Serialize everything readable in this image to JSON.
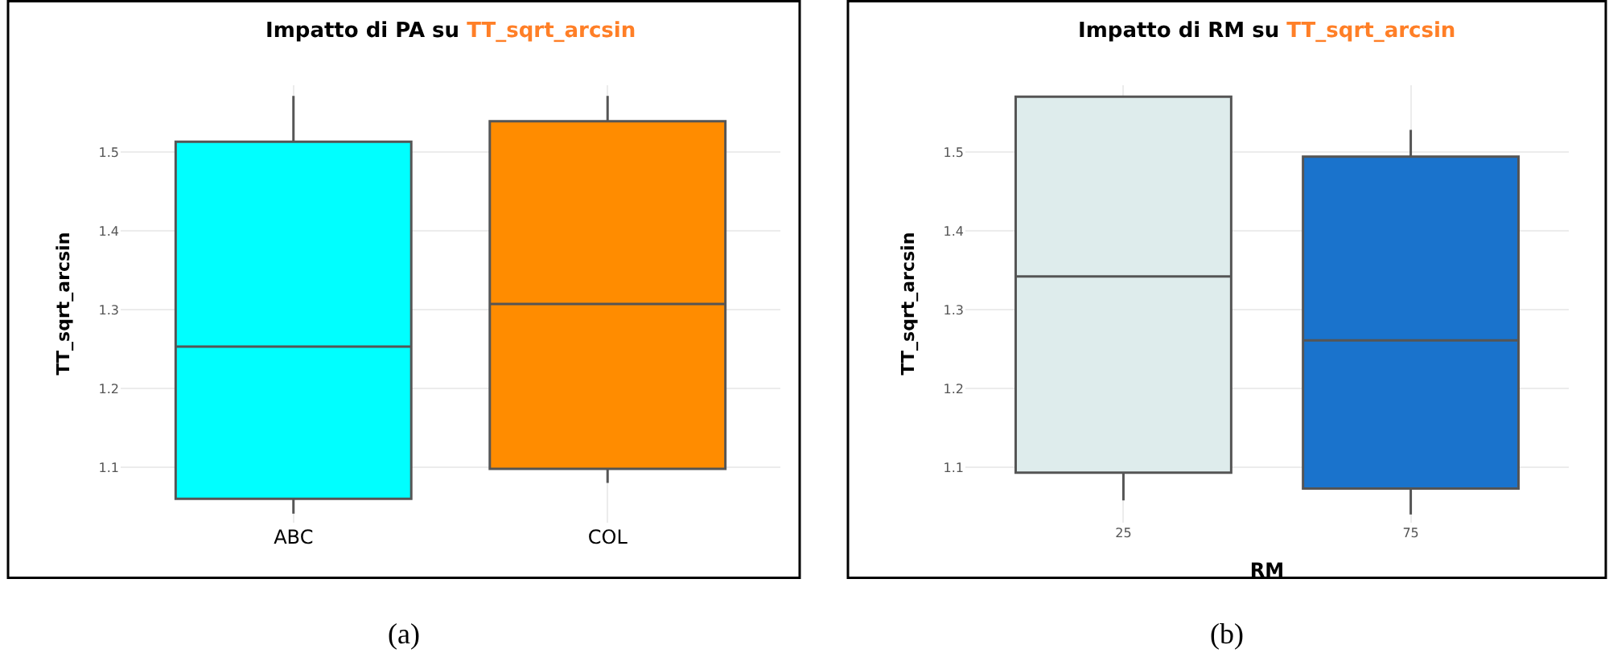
{
  "chart_data": [
    {
      "type": "box",
      "title": "Impatto di PA su TT_sqrt_arcsin",
      "ylabel": "TT_sqrt_arcsin",
      "categories": [
        "ABC",
        "COL"
      ],
      "colors": [
        "#00ffff",
        "#ff8c00"
      ],
      "boxes": [
        {
          "low": 1.041,
          "q1": 1.06,
          "median": 1.253,
          "q3": 1.513,
          "high": 1.571
        },
        {
          "low": 1.08,
          "q1": 1.098,
          "median": 1.307,
          "q3": 1.539,
          "high": 1.571
        }
      ],
      "ylim": [
        1.03,
        1.585
      ],
      "yticks": [
        1.1,
        1.2,
        1.3,
        1.4,
        1.5
      ],
      "grid": true,
      "annotations": [
        "(a)"
      ]
    },
    {
      "type": "box",
      "title": "Impatto di RM su TT_sqrt_arcsin",
      "xlabel": "RM",
      "ylabel": "TT_sqrt_arcsin",
      "categories": [
        "25",
        "75"
      ],
      "colors": [
        "#deecec",
        "#1a73cc"
      ],
      "boxes": [
        {
          "low": 1.058,
          "q1": 1.093,
          "median": 1.342,
          "q3": 1.57,
          "high": 1.57
        },
        {
          "low": 1.04,
          "q1": 1.073,
          "median": 1.261,
          "q3": 1.494,
          "high": 1.528
        }
      ],
      "ylim": [
        1.03,
        1.585
      ],
      "yticks": [
        1.1,
        1.2,
        1.3,
        1.4,
        1.5
      ],
      "grid": true,
      "annotations": [
        "(b)"
      ]
    }
  ]
}
